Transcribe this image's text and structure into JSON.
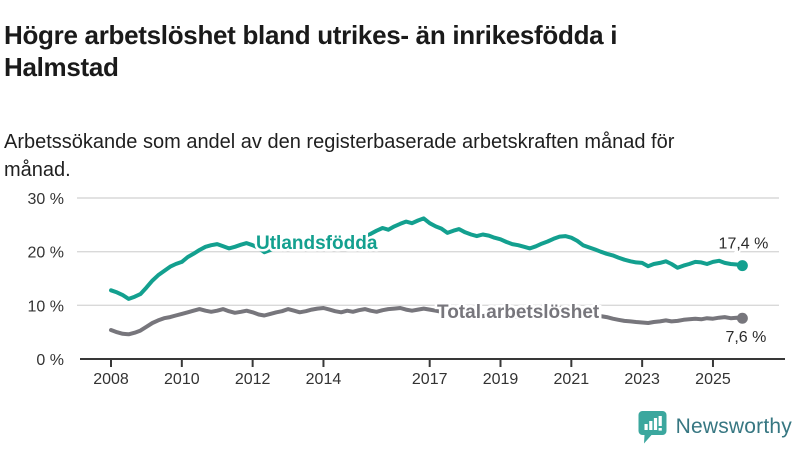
{
  "header": {
    "title": "Högre arbetslöshet bland utrikes- än inrikesfödda i Halmstad",
    "subtitle": "Arbetssökande som andel av den registerbaserade arbetskraften månad för månad."
  },
  "chart_data": {
    "type": "line",
    "title": "Högre arbetslöshet bland utrikes- än inrikesfödda i Halmstad",
    "subtitle": "Arbetssökande som andel av den registerbaserade arbetskraften månad för månad.",
    "xlabel": "",
    "ylabel": "",
    "x_range": [
      2008,
      2025.9
    ],
    "ylim": [
      0,
      30
    ],
    "grid": "horizontal",
    "legend_position": "inline-on-line",
    "x_ticks": [
      2008,
      2010,
      2012,
      2014,
      2017,
      2019,
      2021,
      2023,
      2025
    ],
    "y_ticks": [
      {
        "value": 0,
        "label": "0 %"
      },
      {
        "value": 10,
        "label": "10 %"
      },
      {
        "value": 20,
        "label": "20 %"
      },
      {
        "value": 30,
        "label": "30 %"
      }
    ],
    "series": [
      {
        "id": "utlandsfodda",
        "name": "Utlandsfödda",
        "color": "#13a08f",
        "end_value": 17.4,
        "end_label": "17,4 %",
        "points": [
          [
            2008.0,
            12.8
          ],
          [
            2008.17,
            12.4
          ],
          [
            2008.33,
            11.9
          ],
          [
            2008.5,
            11.2
          ],
          [
            2008.67,
            11.6
          ],
          [
            2008.83,
            12.1
          ],
          [
            2009.0,
            13.3
          ],
          [
            2009.17,
            14.6
          ],
          [
            2009.33,
            15.6
          ],
          [
            2009.5,
            16.4
          ],
          [
            2009.67,
            17.2
          ],
          [
            2009.83,
            17.7
          ],
          [
            2010.0,
            18.1
          ],
          [
            2010.17,
            19.0
          ],
          [
            2010.33,
            19.6
          ],
          [
            2010.5,
            20.3
          ],
          [
            2010.67,
            20.9
          ],
          [
            2010.83,
            21.2
          ],
          [
            2011.0,
            21.4
          ],
          [
            2011.17,
            21.0
          ],
          [
            2011.33,
            20.6
          ],
          [
            2011.5,
            20.9
          ],
          [
            2011.67,
            21.3
          ],
          [
            2011.83,
            21.6
          ],
          [
            2012.0,
            21.2
          ],
          [
            2012.17,
            20.7
          ],
          [
            2012.33,
            19.9
          ],
          [
            2012.5,
            20.3
          ],
          [
            2012.67,
            20.9
          ],
          [
            2012.83,
            20.6
          ],
          [
            2013.0,
            21.0
          ],
          [
            2013.17,
            21.4
          ],
          [
            2013.33,
            21.1
          ],
          [
            2013.5,
            21.5
          ],
          [
            2013.67,
            21.8
          ],
          [
            2013.83,
            21.4
          ],
          [
            2014.0,
            21.7
          ],
          [
            2014.17,
            22.0
          ],
          [
            2014.33,
            21.6
          ],
          [
            2014.5,
            21.9
          ],
          [
            2014.67,
            22.3
          ],
          [
            2014.83,
            22.0
          ],
          [
            2015.0,
            22.4
          ],
          [
            2015.17,
            22.8
          ],
          [
            2015.33,
            23.3
          ],
          [
            2015.5,
            23.9
          ],
          [
            2015.67,
            24.4
          ],
          [
            2015.83,
            24.1
          ],
          [
            2016.0,
            24.7
          ],
          [
            2016.17,
            25.2
          ],
          [
            2016.33,
            25.6
          ],
          [
            2016.5,
            25.3
          ],
          [
            2016.67,
            25.8
          ],
          [
            2016.83,
            26.2
          ],
          [
            2017.0,
            25.3
          ],
          [
            2017.17,
            24.7
          ],
          [
            2017.33,
            24.3
          ],
          [
            2017.5,
            23.5
          ],
          [
            2017.67,
            23.9
          ],
          [
            2017.83,
            24.2
          ],
          [
            2018.0,
            23.6
          ],
          [
            2018.17,
            23.2
          ],
          [
            2018.33,
            22.9
          ],
          [
            2018.5,
            23.2
          ],
          [
            2018.67,
            23.0
          ],
          [
            2018.83,
            22.6
          ],
          [
            2019.0,
            22.3
          ],
          [
            2019.17,
            21.8
          ],
          [
            2019.33,
            21.4
          ],
          [
            2019.5,
            21.2
          ],
          [
            2019.67,
            20.9
          ],
          [
            2019.83,
            20.6
          ],
          [
            2020.0,
            21.0
          ],
          [
            2020.17,
            21.5
          ],
          [
            2020.33,
            21.9
          ],
          [
            2020.5,
            22.4
          ],
          [
            2020.67,
            22.8
          ],
          [
            2020.83,
            22.9
          ],
          [
            2021.0,
            22.6
          ],
          [
            2021.17,
            22.0
          ],
          [
            2021.33,
            21.2
          ],
          [
            2021.5,
            20.8
          ],
          [
            2021.67,
            20.4
          ],
          [
            2021.83,
            20.0
          ],
          [
            2022.0,
            19.6
          ],
          [
            2022.17,
            19.3
          ],
          [
            2022.33,
            18.9
          ],
          [
            2022.5,
            18.5
          ],
          [
            2022.67,
            18.2
          ],
          [
            2022.83,
            18.0
          ],
          [
            2023.0,
            17.9
          ],
          [
            2023.17,
            17.3
          ],
          [
            2023.33,
            17.7
          ],
          [
            2023.5,
            17.9
          ],
          [
            2023.67,
            18.2
          ],
          [
            2023.83,
            17.7
          ],
          [
            2024.0,
            17.0
          ],
          [
            2024.17,
            17.4
          ],
          [
            2024.33,
            17.7
          ],
          [
            2024.5,
            18.1
          ],
          [
            2024.67,
            18.0
          ],
          [
            2024.83,
            17.7
          ],
          [
            2025.0,
            18.1
          ],
          [
            2025.17,
            18.3
          ],
          [
            2025.33,
            17.9
          ],
          [
            2025.5,
            17.7
          ],
          [
            2025.67,
            17.6
          ],
          [
            2025.83,
            17.4
          ]
        ]
      },
      {
        "id": "total-arbetsloshet",
        "name": "Total arbetslöshet",
        "color": "#77767c",
        "end_value": 7.6,
        "end_label": "7,6 %",
        "points": [
          [
            2008.0,
            5.4
          ],
          [
            2008.17,
            5.0
          ],
          [
            2008.33,
            4.7
          ],
          [
            2008.5,
            4.6
          ],
          [
            2008.67,
            4.9
          ],
          [
            2008.83,
            5.3
          ],
          [
            2009.0,
            6.0
          ],
          [
            2009.17,
            6.7
          ],
          [
            2009.33,
            7.2
          ],
          [
            2009.5,
            7.6
          ],
          [
            2009.67,
            7.8
          ],
          [
            2009.83,
            8.1
          ],
          [
            2010.0,
            8.4
          ],
          [
            2010.17,
            8.7
          ],
          [
            2010.33,
            9.0
          ],
          [
            2010.5,
            9.3
          ],
          [
            2010.67,
            9.0
          ],
          [
            2010.83,
            8.8
          ],
          [
            2011.0,
            9.0
          ],
          [
            2011.17,
            9.3
          ],
          [
            2011.33,
            8.9
          ],
          [
            2011.5,
            8.6
          ],
          [
            2011.67,
            8.8
          ],
          [
            2011.83,
            9.0
          ],
          [
            2012.0,
            8.7
          ],
          [
            2012.17,
            8.3
          ],
          [
            2012.33,
            8.1
          ],
          [
            2012.5,
            8.4
          ],
          [
            2012.67,
            8.7
          ],
          [
            2012.83,
            8.9
          ],
          [
            2013.0,
            9.3
          ],
          [
            2013.17,
            9.0
          ],
          [
            2013.33,
            8.7
          ],
          [
            2013.5,
            8.9
          ],
          [
            2013.67,
            9.2
          ],
          [
            2013.83,
            9.4
          ],
          [
            2014.0,
            9.5
          ],
          [
            2014.17,
            9.2
          ],
          [
            2014.33,
            8.9
          ],
          [
            2014.5,
            8.7
          ],
          [
            2014.67,
            9.0
          ],
          [
            2014.83,
            8.8
          ],
          [
            2015.0,
            9.1
          ],
          [
            2015.17,
            9.3
          ],
          [
            2015.33,
            9.0
          ],
          [
            2015.5,
            8.8
          ],
          [
            2015.67,
            9.1
          ],
          [
            2015.83,
            9.3
          ],
          [
            2016.0,
            9.4
          ],
          [
            2016.17,
            9.5
          ],
          [
            2016.33,
            9.2
          ],
          [
            2016.5,
            9.0
          ],
          [
            2016.67,
            9.2
          ],
          [
            2016.83,
            9.4
          ],
          [
            2017.0,
            9.2
          ],
          [
            2017.17,
            9.0
          ],
          [
            2017.33,
            8.8
          ],
          [
            2017.5,
            8.6
          ],
          [
            2017.67,
            8.8
          ],
          [
            2017.83,
            8.9
          ],
          [
            2018.0,
            8.6
          ],
          [
            2018.17,
            8.4
          ],
          [
            2018.33,
            8.2
          ],
          [
            2018.5,
            8.0
          ],
          [
            2018.67,
            8.2
          ],
          [
            2018.83,
            8.3
          ],
          [
            2019.0,
            8.1
          ],
          [
            2019.17,
            7.9
          ],
          [
            2019.33,
            7.8
          ],
          [
            2019.5,
            7.9
          ],
          [
            2019.67,
            8.0
          ],
          [
            2019.83,
            8.1
          ],
          [
            2020.0,
            8.3
          ],
          [
            2020.17,
            8.9
          ],
          [
            2020.33,
            9.4
          ],
          [
            2020.5,
            9.6
          ],
          [
            2020.67,
            9.5
          ],
          [
            2020.83,
            9.3
          ],
          [
            2021.0,
            9.2
          ],
          [
            2021.17,
            8.9
          ],
          [
            2021.33,
            8.6
          ],
          [
            2021.5,
            8.4
          ],
          [
            2021.67,
            8.2
          ],
          [
            2021.83,
            8.0
          ],
          [
            2022.0,
            7.8
          ],
          [
            2022.17,
            7.5
          ],
          [
            2022.33,
            7.3
          ],
          [
            2022.5,
            7.1
          ],
          [
            2022.67,
            7.0
          ],
          [
            2022.83,
            6.9
          ],
          [
            2023.0,
            6.8
          ],
          [
            2023.17,
            6.7
          ],
          [
            2023.33,
            6.9
          ],
          [
            2023.5,
            7.0
          ],
          [
            2023.67,
            7.2
          ],
          [
            2023.83,
            7.0
          ],
          [
            2024.0,
            7.1
          ],
          [
            2024.17,
            7.3
          ],
          [
            2024.33,
            7.4
          ],
          [
            2024.5,
            7.5
          ],
          [
            2024.67,
            7.4
          ],
          [
            2024.83,
            7.6
          ],
          [
            2025.0,
            7.5
          ],
          [
            2025.17,
            7.7
          ],
          [
            2025.33,
            7.8
          ],
          [
            2025.5,
            7.6
          ],
          [
            2025.67,
            7.7
          ],
          [
            2025.83,
            7.6
          ]
        ]
      }
    ]
  },
  "footer": {
    "brand": "Newsworthy",
    "brand_color": "#377782",
    "badge_color": "#3ba79e"
  },
  "colors": {
    "accent_teal": "#13a08f",
    "neutral_gray": "#77767c",
    "gridline": "#d9d9d9",
    "axis": "#383838",
    "text_dark": "#1a1a1a"
  }
}
